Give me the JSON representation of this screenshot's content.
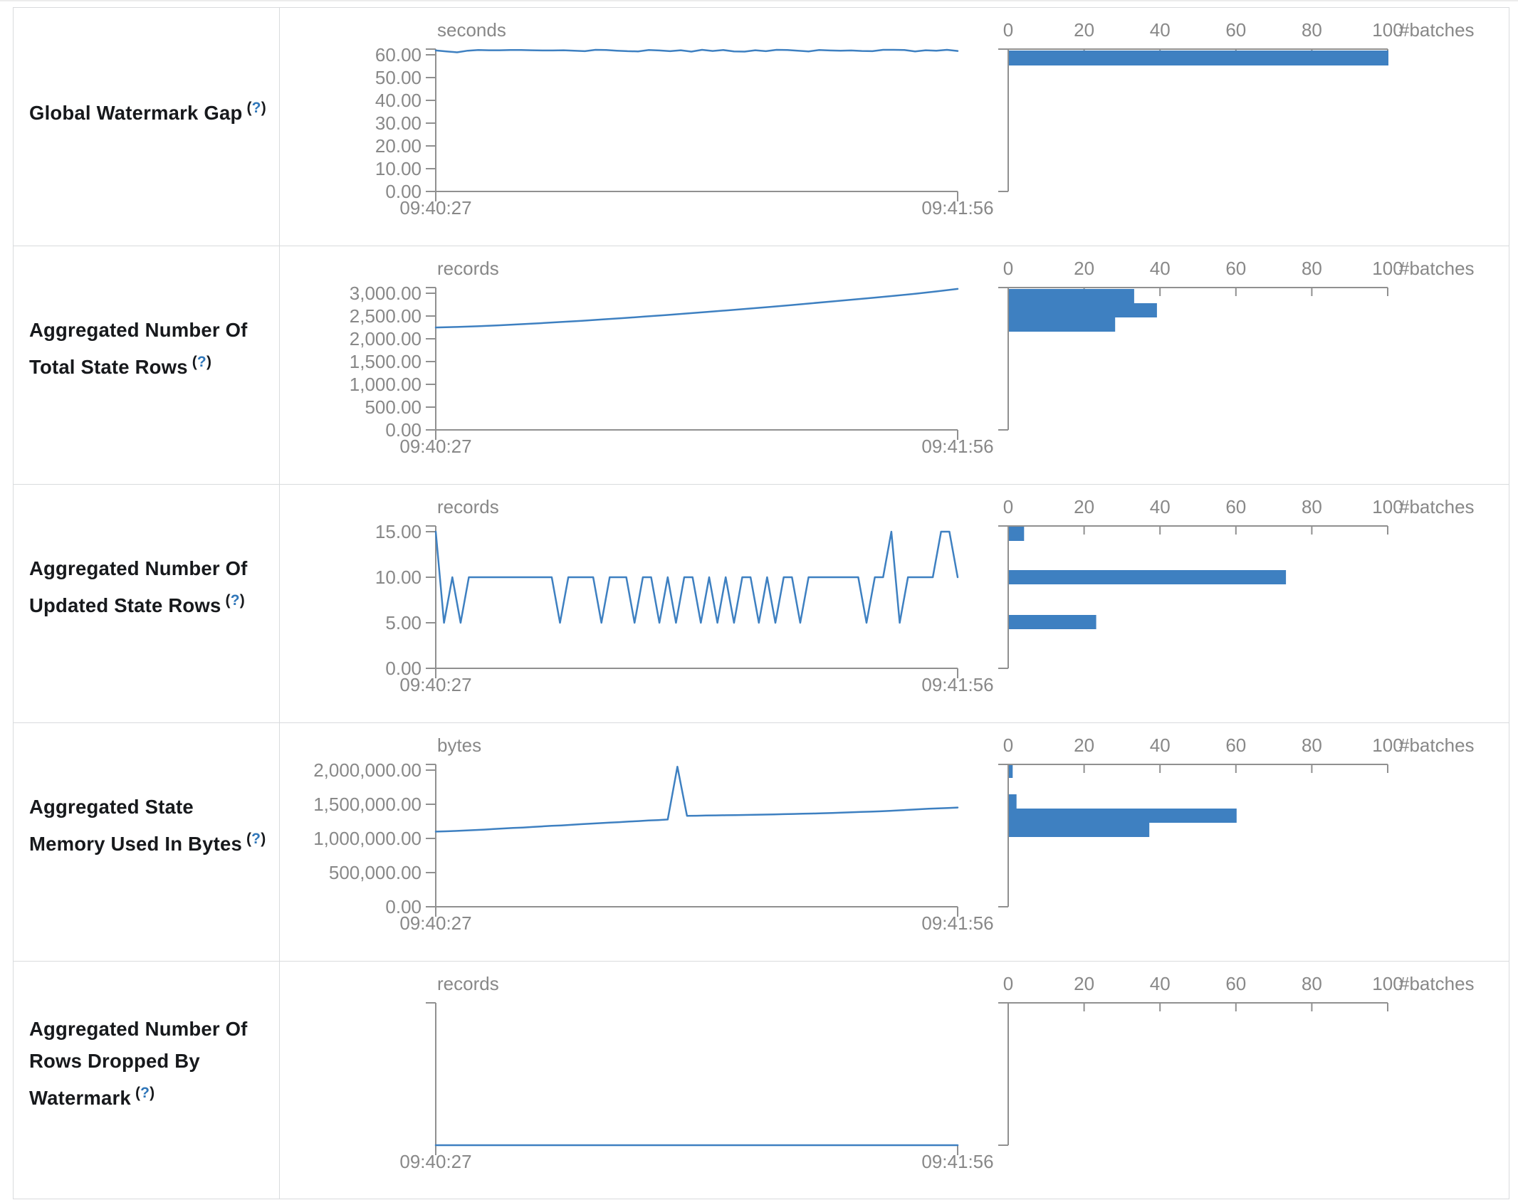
{
  "ui": {
    "help_symbol": "?"
  },
  "rows": [
    {
      "label": "Global Watermark Gap"
    },
    {
      "label": "Aggregated Number Of Total State Rows"
    },
    {
      "label": "Aggregated Number Of Updated State Rows"
    },
    {
      "label": "Aggregated State Memory Used In Bytes"
    },
    {
      "label": "Aggregated Number Of Rows Dropped By Watermark"
    }
  ],
  "colors": {
    "accent_blue": "#3e80c1",
    "axis_gray": "#909090",
    "text_gray": "#888888"
  },
  "chart_data": [
    {
      "title": "Global Watermark Gap",
      "timeline": {
        "type": "line",
        "unit": "seconds",
        "y_tick_labels": [
          "60.00",
          "50.00",
          "40.00",
          "30.00",
          "20.00",
          "10.00",
          "0.00"
        ],
        "y_max_tick": 60,
        "ylim": [
          0,
          64
        ],
        "x_start": "09:40:27",
        "x_end": "09:41:56",
        "values": [
          61.9,
          61.5,
          61.1,
          61.8,
          62.1,
          62.0,
          62.0,
          62.1,
          62.1,
          62.0,
          61.9,
          61.9,
          62.0,
          61.8,
          61.6,
          62.2,
          62.1,
          61.8,
          61.6,
          61.5,
          62.1,
          61.9,
          61.6,
          62.0,
          61.4,
          62.2,
          61.7,
          62.1,
          61.5,
          61.4,
          62.0,
          61.6,
          62.2,
          62.1,
          61.8,
          61.5,
          62.1,
          61.9,
          61.8,
          61.9,
          61.7,
          61.6,
          62.3,
          62.2,
          62.1,
          61.5,
          62.0,
          61.8,
          62.3,
          61.7
        ]
      },
      "histogram": {
        "type": "bar",
        "axis_label": "#batches",
        "tick_labels": [
          "0",
          "20",
          "40",
          "60",
          "80",
          "100"
        ],
        "max": 100,
        "bars": [
          {
            "batches": 100,
            "dy": 2,
            "h": 21
          }
        ]
      }
    },
    {
      "title": "Aggregated Number Of Total State Rows",
      "timeline": {
        "type": "line",
        "unit": "records",
        "y_tick_labels": [
          "3,000.00",
          "2,500.00",
          "2,000.00",
          "1,500.00",
          "1,000.00",
          "500.00",
          "0.00"
        ],
        "y_max_tick": 3000,
        "ylim": [
          0,
          3200
        ],
        "x_start": "09:40:27",
        "x_end": "09:41:56",
        "values": [
          2248,
          2260,
          2275,
          2295,
          2318,
          2342,
          2368,
          2396,
          2425,
          2455,
          2487,
          2520,
          2554,
          2589,
          2625,
          2662,
          2700,
          2739,
          2779,
          2820,
          2861,
          2903,
          2946,
          2990,
          3040,
          3096
        ]
      },
      "histogram": {
        "type": "bar",
        "axis_label": "#batches",
        "tick_labels": [
          "0",
          "20",
          "40",
          "60",
          "80",
          "100"
        ],
        "max": 100,
        "bars": [
          {
            "batches": 33,
            "dy": 2,
            "h": 20
          },
          {
            "batches": 39,
            "dy": 22,
            "h": 20
          },
          {
            "batches": 28,
            "dy": 42,
            "h": 20
          }
        ]
      }
    },
    {
      "title": "Aggregated Number Of Updated State Rows",
      "timeline": {
        "type": "line",
        "unit": "records",
        "y_tick_labels": [
          "15.00",
          "10.00",
          "5.00",
          "0.00"
        ],
        "y_max_tick": 15,
        "ylim": [
          0,
          15.75
        ],
        "x_start": "09:40:27",
        "x_end": "09:41:56",
        "values": [
          15,
          5,
          10,
          5,
          10,
          10,
          10,
          10,
          10,
          10,
          10,
          10,
          10,
          10,
          10,
          5,
          10,
          10,
          10,
          10,
          5,
          10,
          10,
          10,
          5,
          10,
          10,
          5,
          10,
          5,
          10,
          10,
          5,
          10,
          5,
          10,
          5,
          10,
          10,
          5,
          10,
          5,
          10,
          10,
          5,
          10,
          10,
          10,
          10,
          10,
          10,
          10,
          5,
          10,
          10,
          15,
          5,
          10,
          10,
          10,
          10,
          15,
          15,
          10
        ]
      },
      "histogram": {
        "type": "bar",
        "axis_label": "#batches",
        "tick_labels": [
          "0",
          "20",
          "40",
          "60",
          "80",
          "100"
        ],
        "max": 100,
        "bars": [
          {
            "batches": 4,
            "dy": 1,
            "h": 20
          },
          {
            "batches": 73,
            "dy": 62,
            "h": 20
          },
          {
            "batches": 23,
            "dy": 125,
            "h": 20
          }
        ]
      }
    },
    {
      "title": "Aggregated State Memory Used In Bytes",
      "timeline": {
        "type": "line",
        "unit": "bytes",
        "y_tick_labels": [
          "2,000,000.00",
          "1,500,000.00",
          "1,000,000.00",
          "500,000.00",
          "0.00"
        ],
        "y_max_tick": 2000000,
        "ylim": [
          0,
          2100000
        ],
        "x_start": "09:40:27",
        "x_end": "09:41:56",
        "values": [
          1100000,
          1104000,
          1109000,
          1116000,
          1123000,
          1129000,
          1138000,
          1146000,
          1153000,
          1159000,
          1168000,
          1176000,
          1184000,
          1191000,
          1199000,
          1208000,
          1216000,
          1224000,
          1232000,
          1239000,
          1247000,
          1254000,
          1262000,
          1269000,
          1277000,
          2050000,
          1330000,
          1332000,
          1335000,
          1337000,
          1340000,
          1342000,
          1344000,
          1347000,
          1349000,
          1352000,
          1355000,
          1358000,
          1361000,
          1365000,
          1369000,
          1373000,
          1378000,
          1382000,
          1387000,
          1392000,
          1397000,
          1404000,
          1411000,
          1419000,
          1427000,
          1434000,
          1440000,
          1446000,
          1452000
        ]
      },
      "histogram": {
        "type": "bar",
        "axis_label": "#batches",
        "tick_labels": [
          "0",
          "20",
          "40",
          "60",
          "80",
          "100"
        ],
        "max": 100,
        "bars": [
          {
            "batches": 1,
            "dy": 1,
            "h": 18
          },
          {
            "batches": 2,
            "dy": 42,
            "h": 20
          },
          {
            "batches": 60,
            "dy": 62,
            "h": 20
          },
          {
            "batches": 37,
            "dy": 82,
            "h": 20
          }
        ]
      }
    },
    {
      "title": "Aggregated Number Of Rows Dropped By Watermark",
      "timeline": {
        "type": "line",
        "unit": "records",
        "y_tick_labels": [],
        "y_max_tick": 0,
        "ylim": [
          0,
          1
        ],
        "x_start": "09:40:27",
        "x_end": "09:41:56",
        "values": [
          0,
          0
        ]
      },
      "histogram": {
        "type": "bar",
        "axis_label": "#batches",
        "tick_labels": [
          "0",
          "20",
          "40",
          "60",
          "80",
          "100"
        ],
        "max": 100,
        "bars": []
      }
    }
  ]
}
